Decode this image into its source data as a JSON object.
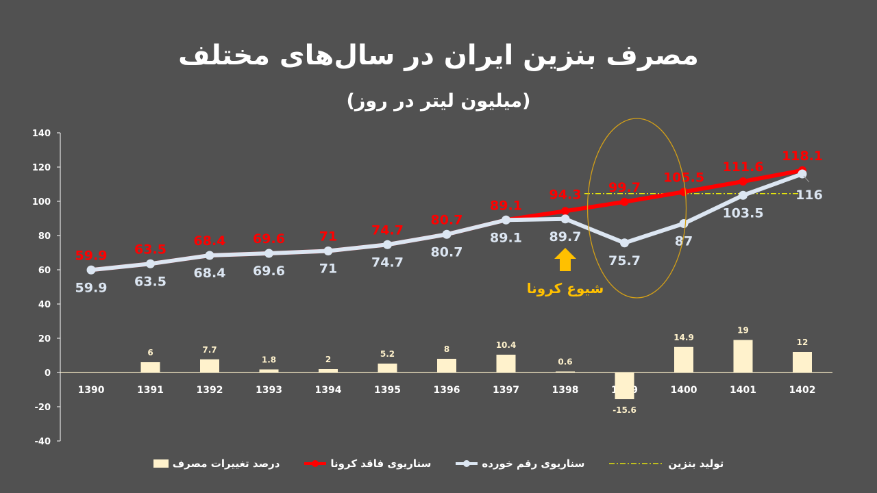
{
  "header": {
    "title": "مصرف بنزین ایران در سال‌های مختلف",
    "subtitle": "(میلیون لیتر در روز)"
  },
  "annotation": {
    "label": "شیوع کرونا",
    "arrow_icon": "up-arrow-icon",
    "color": "#FFC000"
  },
  "colors": {
    "background": "#515151",
    "no_covid": "#FF0000",
    "actual": "#DCE6F2",
    "bars": "#FFF2CC",
    "production": "#FFFF00",
    "ellipse": "#D4A017",
    "axis": "#FFFFFF"
  },
  "legend": {
    "production": "تولید بنزین",
    "actual": "سناریوی رقم خورده",
    "no_covid": "سناریوی فاقد کرونا",
    "bars": "درصد تغییرات مصرف"
  },
  "chart_data": {
    "type": "line+bar",
    "title": "مصرف بنزین ایران در سال‌های مختلف",
    "subtitle": "(میلیون لیتر در روز)",
    "xlabel": "",
    "ylabel": "",
    "ylim": [
      -40,
      140
    ],
    "yticks": [
      140,
      120,
      100,
      80,
      60,
      40,
      20,
      0,
      -20,
      -40
    ],
    "grid": false,
    "legend_position": "bottom",
    "categories": [
      "1390",
      "1391",
      "1392",
      "1393",
      "1394",
      "1395",
      "1396",
      "1397",
      "1398",
      "1399",
      "1400",
      "1401",
      "1402"
    ],
    "series": [
      {
        "name": "سناریوی فاقد کرونا",
        "type": "line",
        "color": "#FF0000",
        "values": [
          59.9,
          63.5,
          68.4,
          69.6,
          71,
          74.7,
          80.7,
          89.1,
          94.3,
          99.7,
          105.5,
          111.6,
          118.1
        ]
      },
      {
        "name": "سناریوی رقم خورده",
        "type": "line",
        "color": "#DCE6F2",
        "values": [
          59.9,
          63.5,
          68.4,
          69.6,
          71,
          74.7,
          80.7,
          89.1,
          89.7,
          75.7,
          87,
          103.5,
          116
        ]
      },
      {
        "name": "درصد تغییرات مصرف",
        "type": "bar",
        "color": "#FFF2CC",
        "values": [
          null,
          6,
          7.7,
          1.8,
          2,
          5.2,
          8,
          10.4,
          0.6,
          -15.6,
          14.9,
          19,
          12
        ]
      },
      {
        "name": "تولید بنزین",
        "type": "line",
        "style": "dash-dot",
        "color": "#FFFF00",
        "x_range": [
          "1398",
          "1402"
        ],
        "value": 104.5
      }
    ],
    "annotations": [
      {
        "text": "شیوع کرونا",
        "at": "1398",
        "type": "arrow-up"
      },
      {
        "type": "ellipse",
        "around": "1399"
      }
    ]
  }
}
